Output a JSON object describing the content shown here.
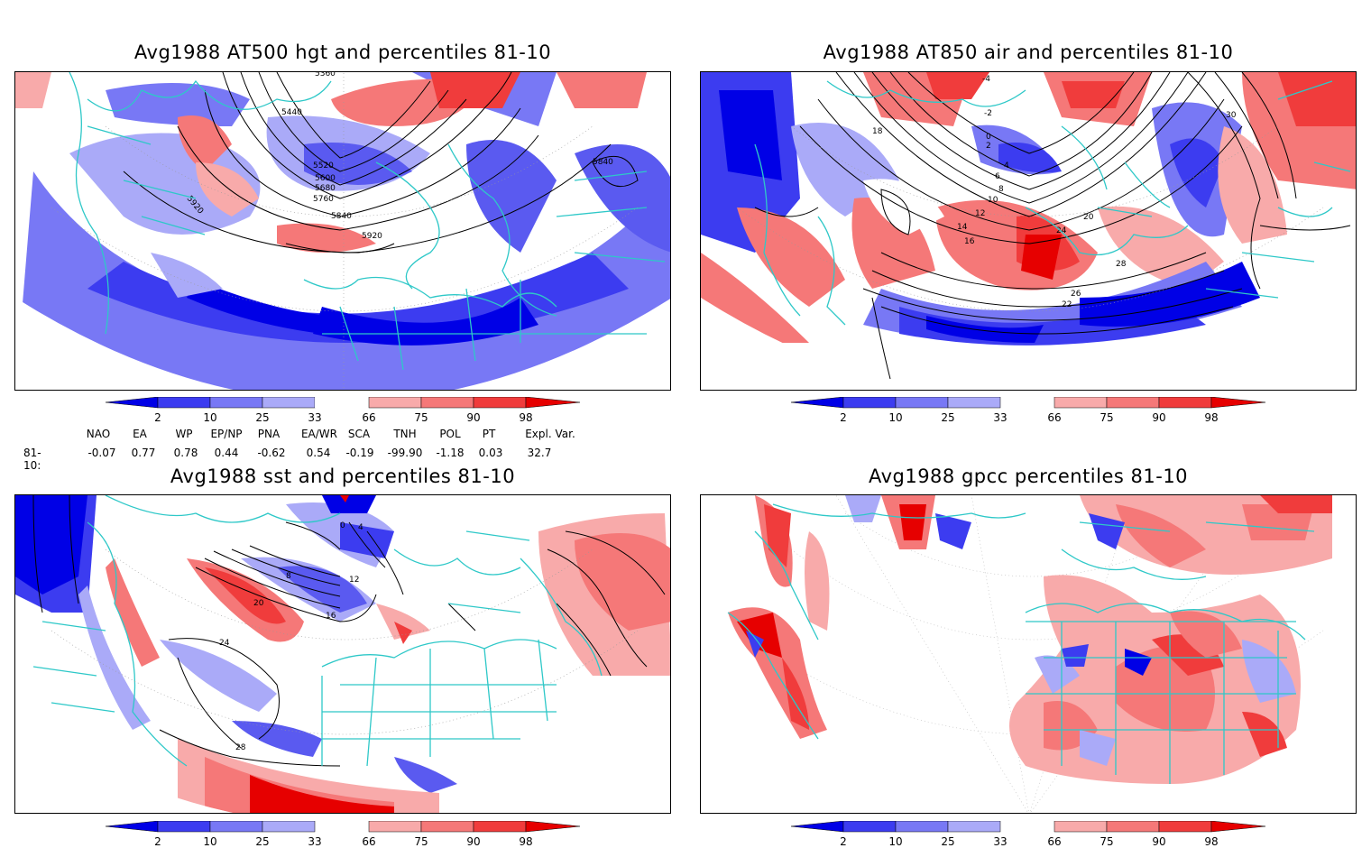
{
  "panels": [
    {
      "id": "p1",
      "title": "Avg1988 AT500 hgt and percentiles 81-10",
      "contours": [
        "5360",
        "5440",
        "5520",
        "5600",
        "5680",
        "5760",
        "5840",
        "5920",
        "5920",
        "5840"
      ]
    },
    {
      "id": "p2",
      "title": "Avg1988 AT850 air and percentiles 81-10",
      "contours": [
        "-4",
        "-2",
        "0",
        "2",
        "4",
        "6",
        "8",
        "10",
        "12",
        "14",
        "16",
        "18",
        "20",
        "22",
        "24",
        "26",
        "28",
        "30"
      ]
    },
    {
      "id": "p3",
      "title": "Avg1988 sst and percentiles 81-10",
      "contours": [
        "0",
        "4",
        "8",
        "12",
        "16",
        "20",
        "24",
        "28"
      ]
    },
    {
      "id": "p4",
      "title": "Avg1988 gpcc percentiles 81-10",
      "contours": []
    }
  ],
  "colorbar": {
    "labels": [
      "2",
      "10",
      "25",
      "33",
      "66",
      "75",
      "90",
      "98"
    ],
    "colors": [
      "#0000e6",
      "#3c3cf0",
      "#7878f5",
      "#aaaaf8",
      "#ffffff",
      "#f8aaaa",
      "#f57878",
      "#f03c3c",
      "#e60000"
    ]
  },
  "index_table": {
    "headers": [
      "NAO",
      "EA",
      "WP",
      "EP/NP",
      "PNA",
      "EA/WR",
      "SCA",
      "TNH",
      "POL",
      "PT",
      "Expl. Var."
    ],
    "row_label": "81-10:",
    "values": [
      "-0.07",
      "0.77",
      "0.78",
      "0.44",
      "-0.62",
      "0.54",
      "-0.19",
      "-99.90",
      "-1.18",
      "0.03",
      "32.7"
    ]
  },
  "colors": {
    "coast": "#2ec8c8",
    "blue_strong": "#0000e6",
    "blue_mid": "#5a5af0",
    "blue_light": "#aaaaf8",
    "red_light": "#f8aaaa",
    "red_mid": "#f56060",
    "red_strong": "#e60000"
  }
}
